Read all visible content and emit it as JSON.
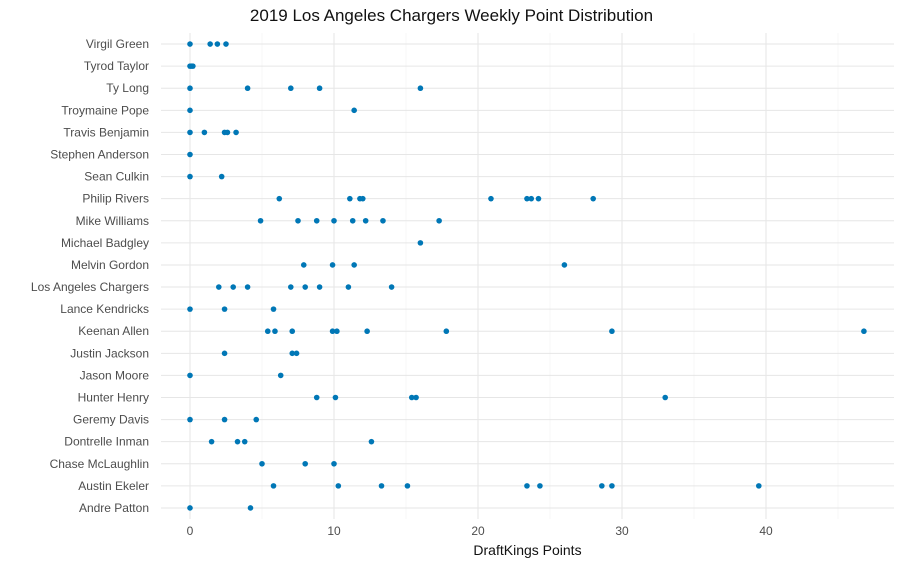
{
  "chart_data": {
    "type": "scatter",
    "title": "2019 Los Angeles Chargers Weekly Point Distribution",
    "xlabel": "DraftKings Points",
    "ylabel": "",
    "xlim": [
      -2,
      49
    ],
    "x_ticks": [
      0,
      10,
      20,
      30,
      40
    ],
    "grid": true,
    "point_color": "#0077b6",
    "categories": [
      "Andre Patton",
      "Austin Ekeler",
      "Chase McLaughlin",
      "Dontrelle Inman",
      "Geremy Davis",
      "Hunter Henry",
      "Jason Moore",
      "Justin Jackson",
      "Keenan Allen",
      "Lance Kendricks",
      "Los Angeles Chargers",
      "Melvin Gordon",
      "Michael Badgley",
      "Mike Williams",
      "Philip Rivers",
      "Sean Culkin",
      "Stephen Anderson",
      "Travis Benjamin",
      "Troymaine Pope",
      "Ty Long",
      "Tyrod Taylor",
      "Virgil Green"
    ],
    "points": [
      {
        "player": "Virgil Green",
        "values": [
          0,
          1.4,
          1.9,
          2.5
        ]
      },
      {
        "player": "Tyrod Taylor",
        "values": [
          0,
          0.1,
          0.2
        ]
      },
      {
        "player": "Ty Long",
        "values": [
          0,
          4,
          7,
          9,
          16
        ]
      },
      {
        "player": "Troymaine Pope",
        "values": [
          0,
          11.4
        ]
      },
      {
        "player": "Travis Benjamin",
        "values": [
          0,
          1,
          2.4,
          2.6,
          3.2
        ]
      },
      {
        "player": "Stephen Anderson",
        "values": [
          0
        ]
      },
      {
        "player": "Sean Culkin",
        "values": [
          0,
          2.2
        ]
      },
      {
        "player": "Philip Rivers",
        "values": [
          6.2,
          11.1,
          11.8,
          12,
          20.9,
          23.4,
          23.7,
          24.2,
          28
        ]
      },
      {
        "player": "Mike Williams",
        "values": [
          4.9,
          7.5,
          8.8,
          10,
          11.3,
          12.2,
          13.4,
          17.3
        ]
      },
      {
        "player": "Michael Badgley",
        "values": [
          16
        ]
      },
      {
        "player": "Melvin Gordon",
        "values": [
          7.9,
          9.9,
          11.4,
          26
        ]
      },
      {
        "player": "Los Angeles Chargers",
        "values": [
          2,
          3,
          4,
          7,
          8,
          9,
          11,
          14
        ]
      },
      {
        "player": "Lance Kendricks",
        "values": [
          0,
          2.4,
          5.8
        ]
      },
      {
        "player": "Keenan Allen",
        "values": [
          5.4,
          5.9,
          7.1,
          9.9,
          10.2,
          12.3,
          17.8,
          29.3,
          46.8
        ]
      },
      {
        "player": "Justin Jackson",
        "values": [
          2.4,
          7.1,
          7.4
        ]
      },
      {
        "player": "Jason Moore",
        "values": [
          0,
          6.3
        ]
      },
      {
        "player": "Hunter Henry",
        "values": [
          8.8,
          10.1,
          15.4,
          15.7,
          33
        ]
      },
      {
        "player": "Geremy Davis",
        "values": [
          0,
          2.4,
          4.6
        ]
      },
      {
        "player": "Dontrelle Inman",
        "values": [
          1.5,
          3.3,
          3.8,
          12.6
        ]
      },
      {
        "player": "Chase McLaughlin",
        "values": [
          5,
          8,
          10
        ]
      },
      {
        "player": "Austin Ekeler",
        "values": [
          5.8,
          10.3,
          13.3,
          15.1,
          23.4,
          24.3,
          28.6,
          29.3,
          39.5
        ]
      },
      {
        "player": "Andre Patton",
        "values": [
          0,
          4.2
        ]
      }
    ]
  }
}
